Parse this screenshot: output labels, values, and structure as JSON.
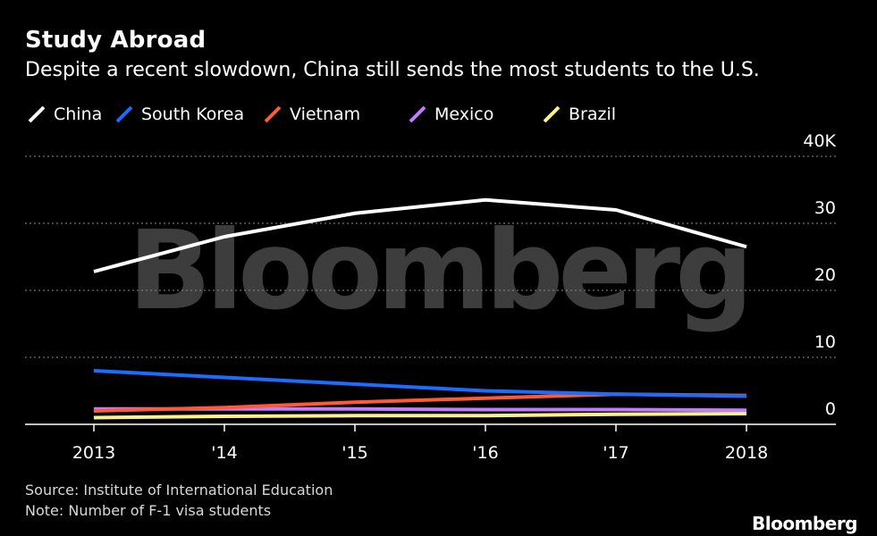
{
  "title": "Study Abroad",
  "subtitle": "Despite a recent slowdown, China still sends the most students to the U.S.",
  "watermark": "Bloomberg",
  "source": "Source: Institute of International Education",
  "note": "Note: Number of F-1 visa students",
  "brand": "Bloomberg",
  "chart_data": {
    "type": "line",
    "x": [
      "2013",
      "'14",
      "'15",
      "'16",
      "'17",
      "2018"
    ],
    "series": [
      {
        "name": "China",
        "color": "#ffffff",
        "values": [
          22800,
          28000,
          31500,
          33500,
          32000,
          26500
        ]
      },
      {
        "name": "South Korea",
        "color": "#1a6dff",
        "values": [
          8000,
          7000,
          6000,
          5000,
          4500,
          4200
        ]
      },
      {
        "name": "Vietnam",
        "color": "#ff5a36",
        "values": [
          2000,
          2500,
          3300,
          3900,
          4500,
          4300
        ]
      },
      {
        "name": "Mexico",
        "color": "#c27cff",
        "values": [
          2300,
          2300,
          2300,
          2200,
          2200,
          2100
        ]
      },
      {
        "name": "Brazil",
        "color": "#fff18a",
        "values": [
          1000,
          1200,
          1300,
          1300,
          1500,
          1600
        ]
      }
    ],
    "y_ticks": [
      "0",
      "10",
      "20",
      "30",
      "40K"
    ],
    "ylim": [
      0,
      40000
    ],
    "grid": true,
    "legend_position": "top"
  }
}
